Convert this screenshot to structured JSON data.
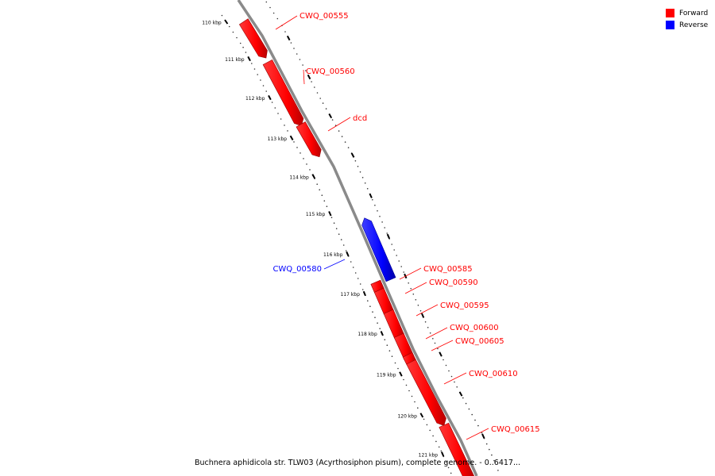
{
  "legend": {
    "forward_label": "Forward",
    "forward_color": "#ff0000",
    "reverse_label": "Reverse",
    "reverse_color": "#0000ff"
  },
  "caption": "Buchnera aphidicola str. TLW03 (Acyrthosiphon pisum), complete genome. - 0..6417...",
  "ruler_labels": [
    "110 kbp",
    "111 kbp",
    "112 kbp",
    "113 kbp",
    "114 kbp",
    "115 kbp",
    "116 kbp",
    "117 kbp",
    "118 kbp",
    "119 kbp",
    "120 kbp",
    "121 kbp"
  ],
  "genes": [
    {
      "name": "CWQ_00555",
      "strand": "forward"
    },
    {
      "name": "CWQ_00560",
      "strand": "forward"
    },
    {
      "name": "dcd",
      "strand": "forward"
    },
    {
      "name": "CWQ_00580",
      "strand": "reverse"
    },
    {
      "name": "CWQ_00585",
      "strand": "forward"
    },
    {
      "name": "CWQ_00590",
      "strand": "forward"
    },
    {
      "name": "CWQ_00595",
      "strand": "forward"
    },
    {
      "name": "CWQ_00600",
      "strand": "forward"
    },
    {
      "name": "CWQ_00605",
      "strand": "forward"
    },
    {
      "name": "CWQ_00610",
      "strand": "forward"
    },
    {
      "name": "CWQ_00615",
      "strand": "forward"
    }
  ]
}
